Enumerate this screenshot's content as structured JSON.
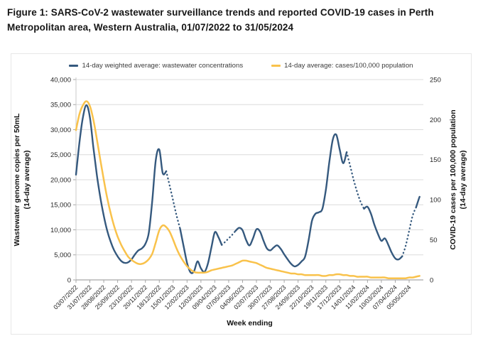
{
  "figure": {
    "title": "Figure 1: SARS-CoV-2 wastewater surveillance trends and reported COVID-19 cases in Perth Metropolitan area, Western Australia, 01/07/2022 to 31/05/2024"
  },
  "legend": {
    "items": [
      {
        "label": "14-day weighted average: wastewater concentrations",
        "color": "#35597E"
      },
      {
        "label": "14-day average: cases/100,000 population",
        "color": "#F9C24B"
      }
    ]
  },
  "colors": {
    "wastewater_line": "#35597E",
    "cases_line": "#F9C24B",
    "gridline": "#dcdcdc",
    "axis_line": "#a6a6a6",
    "tick_text": "#262626"
  },
  "chart_data": {
    "type": "line",
    "title": "",
    "xlabel": "Week ending",
    "ylabel_left": [
      "Wastewater genome copies per 50mL",
      "(14-day average)"
    ],
    "ylabel_right": [
      "COVID-19 cases per 100,000 population",
      "(14-day average)"
    ],
    "ylim_left": [
      0,
      40000
    ],
    "ylim_right": [
      0,
      250
    ],
    "yticks_left": [
      "0",
      "5,000",
      "10,000",
      "15,000",
      "20,000",
      "25,000",
      "30,000",
      "35,000",
      "40,000"
    ],
    "yticks_right": [
      "0",
      "50",
      "100",
      "150",
      "200",
      "250"
    ],
    "x_tick_labels": [
      "03/07/2022",
      "31/07/2022",
      "28/08/2022",
      "25/09/2022",
      "23/10/2022",
      "20/11/2022",
      "18/12/2022",
      "15/01/2023",
      "12/02/2023",
      "12/03/2023",
      "09/04/2023",
      "07/05/2023",
      "04/06/2023",
      "02/07/2023",
      "30/07/2023",
      "27/08/2023",
      "24/09/2023",
      "22/10/2023",
      "19/11/2023",
      "17/12/2023",
      "14/01/2024",
      "11/02/2024",
      "10/03/2024",
      "07/04/2024",
      "05/05/2024"
    ],
    "x_start": "03/07/2022",
    "x_end": "31/05/2024",
    "x_interval_days": 7,
    "grid": "horizontal",
    "legend_position": "top",
    "series": [
      {
        "name": "14-day weighted average: wastewater concentrations",
        "axis": "left",
        "color": "#35597E",
        "dotted_segments": [
          [
            26,
            30
          ],
          [
            42,
            46
          ],
          [
            78,
            83
          ],
          [
            94,
            98
          ]
        ],
        "values": [
          21000,
          27500,
          32500,
          34900,
          32500,
          26500,
          21000,
          16500,
          12800,
          9800,
          7600,
          5900,
          4700,
          3800,
          3400,
          3500,
          4100,
          5100,
          5900,
          6300,
          7200,
          9500,
          16000,
          24000,
          26000,
          21300,
          21700,
          18800,
          15800,
          12800,
          10200,
          6800,
          3400,
          1500,
          1700,
          3700,
          2300,
          1600,
          3200,
          6400,
          9500,
          8600,
          7000,
          7600,
          8300,
          9000,
          9800,
          10400,
          9900,
          8000,
          6900,
          8300,
          10100,
          9700,
          7900,
          6300,
          5900,
          6500,
          6900,
          6200,
          5100,
          4100,
          3200,
          2700,
          3000,
          3700,
          4600,
          7800,
          11800,
          13200,
          13500,
          14200,
          18000,
          23500,
          28000,
          29000,
          26000,
          23300,
          25500,
          22800,
          20000,
          17600,
          15600,
          14200,
          14600,
          13200,
          11000,
          9200,
          7800,
          8300,
          7000,
          5400,
          4300,
          4100,
          4700,
          6800,
          9800,
          12800,
          14500,
          16600
        ]
      },
      {
        "name": "14-day average: cases/100,000 population",
        "axis": "right",
        "color": "#F9C24B",
        "dotted_segments": [],
        "values": [
          187,
          207,
          218,
          223,
          217,
          200,
          176,
          150,
          125,
          102,
          83,
          67,
          54,
          44,
          36,
          29,
          25,
          22,
          20,
          20,
          22,
          26,
          33,
          47,
          62,
          68,
          66,
          60,
          50,
          39,
          30,
          23,
          17,
          13,
          10,
          9,
          9,
          9,
          10,
          12,
          13,
          14,
          15,
          16,
          17,
          18,
          20,
          22,
          24,
          24,
          23,
          22,
          21,
          19,
          17,
          15,
          14,
          13,
          12,
          11,
          10,
          9,
          8,
          8,
          7,
          7,
          6,
          6,
          6,
          6,
          6,
          5,
          5,
          6,
          6,
          7,
          7,
          6,
          6,
          5,
          5,
          4,
          4,
          4,
          4,
          3,
          3,
          3,
          3,
          3,
          2,
          2,
          2,
          2,
          2,
          2,
          3,
          3,
          4,
          5
        ]
      }
    ]
  }
}
